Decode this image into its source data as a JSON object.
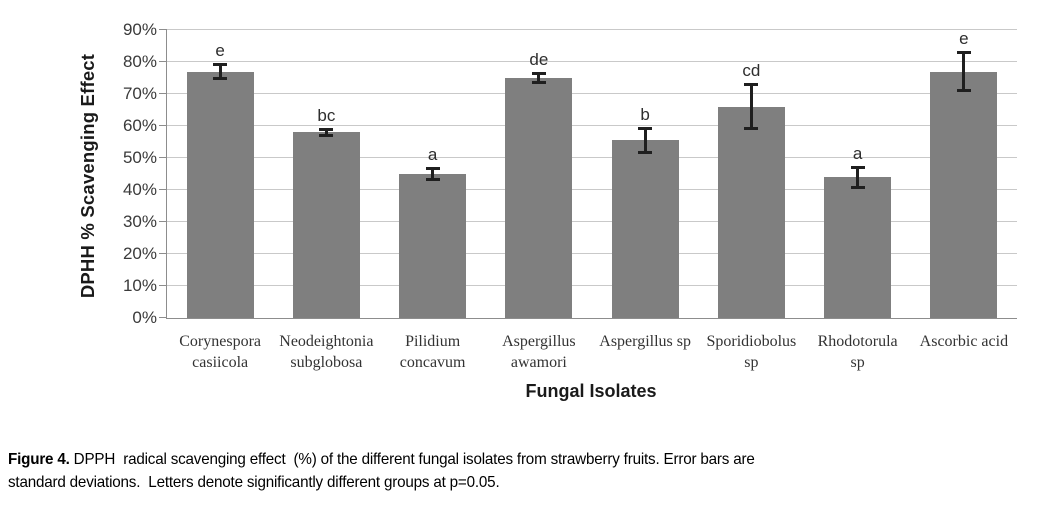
{
  "chart_data": {
    "type": "bar",
    "title": "",
    "xlabel": "Fungal Isolates",
    "ylabel": "DPHH % Scavenging Effect",
    "ylim": [
      0,
      90
    ],
    "ytick_step": 10,
    "yticks": [
      "0%",
      "10%",
      "20%",
      "30%",
      "40%",
      "50%",
      "60%",
      "70%",
      "80%",
      "90%"
    ],
    "grid": true,
    "legend": "none",
    "bar_color": "#7f7f7f",
    "categories": [
      [
        "Corynespora",
        "casiicola"
      ],
      [
        "Neodeightonia",
        "subglobosa"
      ],
      [
        "Pilidium",
        "concavum"
      ],
      [
        "Aspergillus",
        "awamori"
      ],
      [
        "Aspergillus sp"
      ],
      [
        "Sporidiobolus",
        "sp"
      ],
      [
        "Rhodotorula",
        "sp"
      ],
      [
        "Ascorbic acid"
      ]
    ],
    "values": [
      77,
      58,
      45,
      75,
      55.5,
      66,
      44,
      77
    ],
    "errors": [
      2.3,
      1,
      2,
      1.5,
      4,
      7,
      3.3,
      6
    ],
    "error_note": "standard deviation",
    "group_letters": [
      "e",
      "bc",
      "a",
      "de",
      "b",
      "cd",
      "a",
      "e"
    ]
  },
  "caption": {
    "label": "Figure 4.",
    "line1": " DPPH  radical scavenging effect  (%) of the different fungal isolates from strawberry fruits. Error bars are",
    "line2": "standard deviations.  Letters denote significantly different groups at p=0.05."
  },
  "colors": {
    "bar": "#7f7f7f",
    "gridline": "#c9c9c9",
    "axis": "#8d8d8d",
    "error_bar": "#1f1f1f",
    "background": "#ffffff"
  }
}
